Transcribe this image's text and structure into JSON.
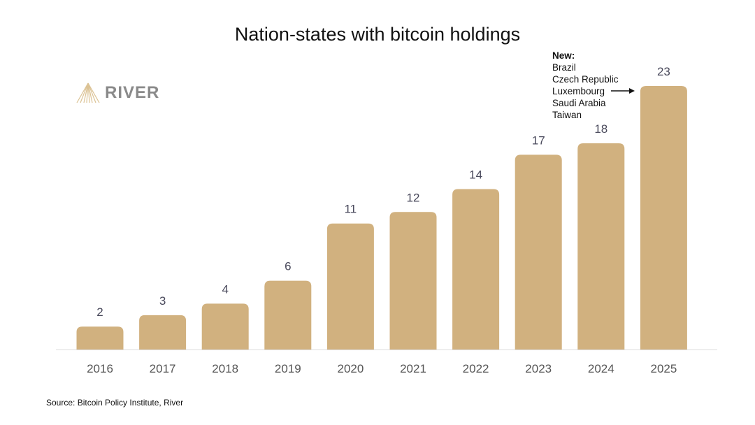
{
  "chart_data": {
    "type": "bar",
    "title": "Nation-states with bitcoin holdings",
    "categories": [
      "2016",
      "2017",
      "2018",
      "2019",
      "2020",
      "2021",
      "2022",
      "2023",
      "2024",
      "2025"
    ],
    "values": [
      2,
      3,
      4,
      6,
      11,
      12,
      14,
      17,
      18,
      23
    ],
    "xlabel": "",
    "ylabel": "",
    "ylim": [
      0,
      23
    ],
    "grid": false,
    "bar_color": "#d1b17f",
    "annotation": {
      "heading": "New:",
      "items": [
        "Brazil",
        "Czech Republic",
        "Luxembourg",
        "Saudi Arabia",
        "Taiwan"
      ],
      "points_to": "2025"
    }
  },
  "logo": {
    "text": "RIVER"
  },
  "source": "Source: Bitcoin Policy Institute, River"
}
